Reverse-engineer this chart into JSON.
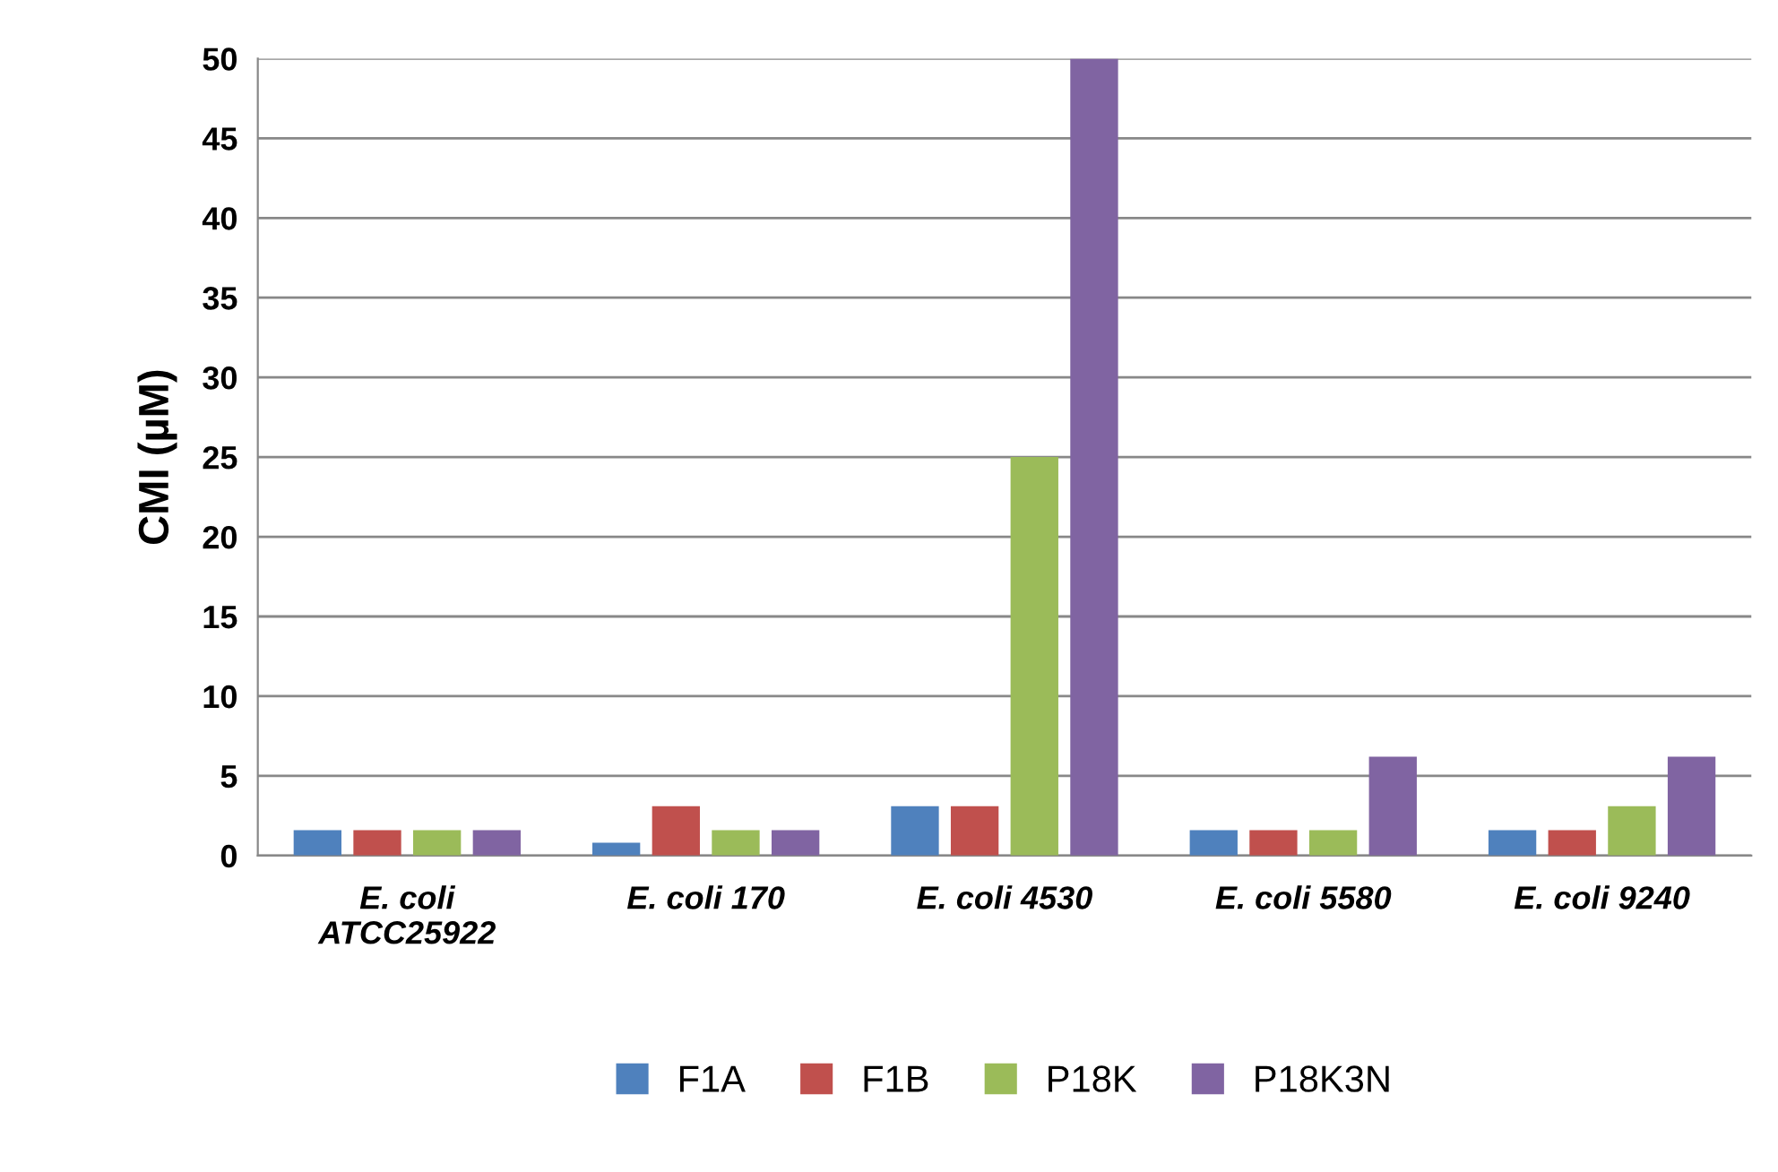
{
  "chart_data": {
    "type": "bar",
    "ylabel": "CMI (µM)",
    "categories": [
      "E. coli ATCC25922",
      "E. coli 170",
      "E. coli 4530",
      "E. coli 5580",
      "E. coli 9240"
    ],
    "series": [
      {
        "name": "F1A",
        "color": "#4f81bd",
        "values": [
          1.6,
          0.8,
          3.1,
          1.6,
          1.6
        ]
      },
      {
        "name": "F1B",
        "color": "#c0504d",
        "values": [
          1.6,
          3.1,
          3.1,
          1.6,
          1.6
        ]
      },
      {
        "name": "P18K",
        "color": "#9bbb59",
        "values": [
          1.6,
          1.6,
          25,
          1.6,
          3.1
        ]
      },
      {
        "name": "P18K3N",
        "color": "#8064a2",
        "values": [
          1.6,
          1.6,
          50,
          6.2,
          6.2
        ]
      }
    ],
    "ylim": [
      0,
      50
    ],
    "yticks": [
      0,
      5,
      10,
      15,
      20,
      25,
      30,
      35,
      40,
      45,
      50
    ],
    "grid": "y",
    "legend": "bottom"
  }
}
